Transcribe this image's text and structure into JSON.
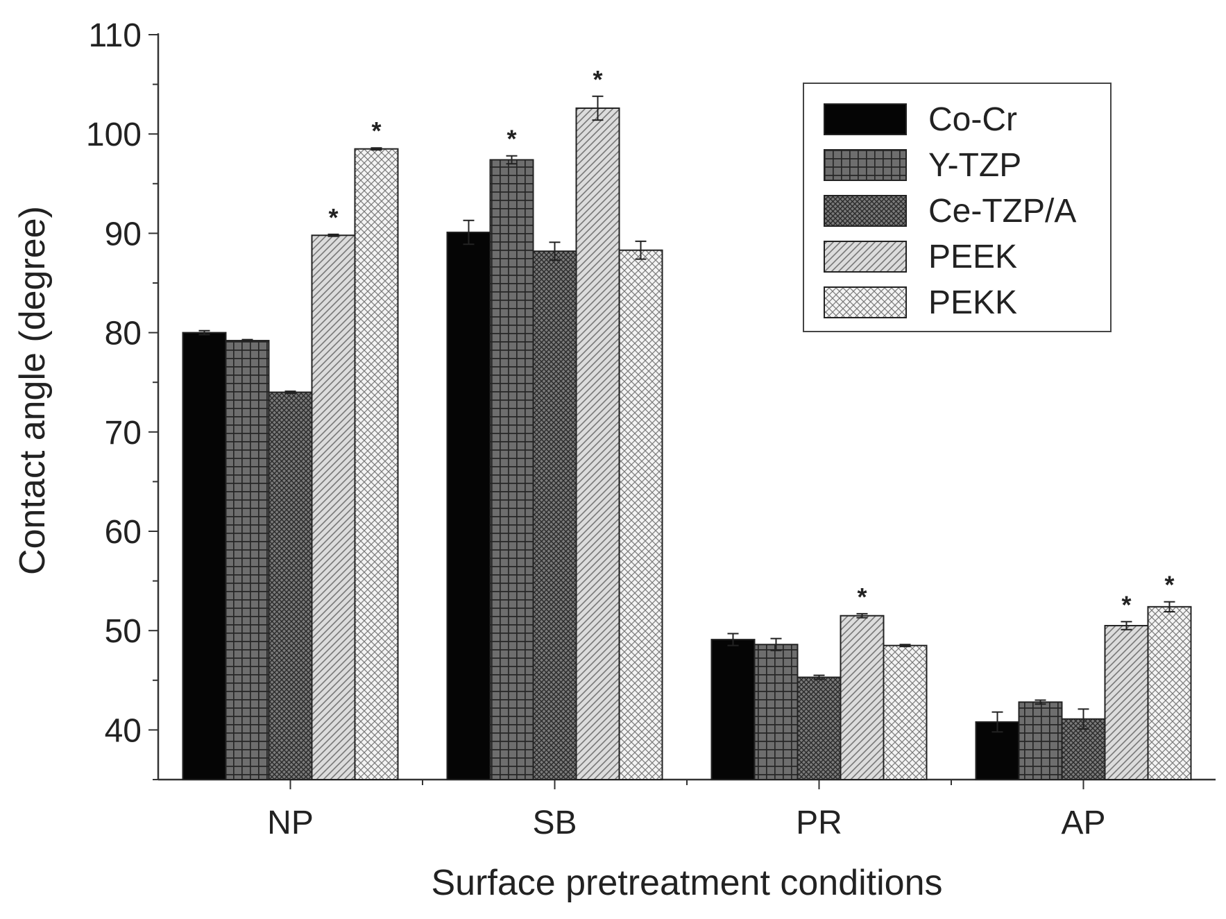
{
  "chart_data": {
    "type": "bar",
    "title": "",
    "xlabel": "Surface pretreatment conditions",
    "ylabel": "Contact angle (degree)",
    "ylim": [
      35,
      110
    ],
    "yticks": [
      40,
      50,
      60,
      70,
      80,
      90,
      100,
      110
    ],
    "categories": [
      "NP",
      "SB",
      "PR",
      "AP"
    ],
    "legend_position": "top-right",
    "significance_marker": "*",
    "series": [
      {
        "name": "Co-Cr",
        "pattern": "solid",
        "values": [
          80.0,
          90.1,
          49.1,
          40.8
        ],
        "errors": [
          0.2,
          1.2,
          0.6,
          1.0
        ],
        "significant": [
          false,
          false,
          false,
          false
        ]
      },
      {
        "name": "Y-TZP",
        "pattern": "grid",
        "values": [
          79.2,
          97.4,
          48.6,
          42.8
        ],
        "errors": [
          0.1,
          0.4,
          0.6,
          0.2
        ],
        "significant": [
          false,
          true,
          false,
          false
        ]
      },
      {
        "name": "Ce-TZP/A",
        "pattern": "crosshatch",
        "values": [
          74.0,
          88.2,
          45.3,
          41.1
        ],
        "errors": [
          0.1,
          0.9,
          0.2,
          1.0
        ],
        "significant": [
          false,
          false,
          false,
          false
        ]
      },
      {
        "name": "PEEK",
        "pattern": "diagonal",
        "values": [
          89.8,
          102.6,
          51.5,
          50.5
        ],
        "errors": [
          0.1,
          1.2,
          0.2,
          0.4
        ],
        "significant": [
          true,
          true,
          true,
          true
        ]
      },
      {
        "name": "PEKK",
        "pattern": "lightcross",
        "values": [
          98.5,
          88.3,
          48.5,
          52.4
        ],
        "errors": [
          0.1,
          0.9,
          0.1,
          0.5
        ],
        "significant": [
          true,
          false,
          false,
          true
        ]
      }
    ]
  }
}
